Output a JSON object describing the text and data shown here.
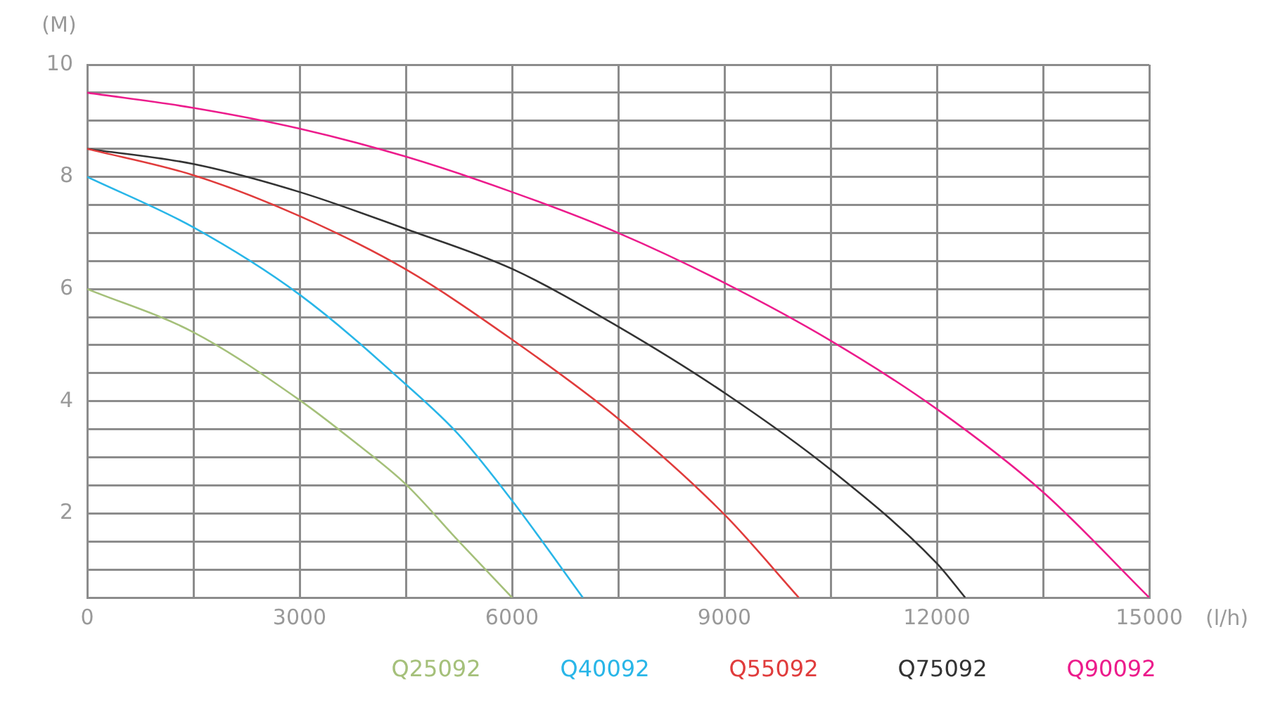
{
  "chart_data": {
    "type": "line",
    "xlabel": "(l/h)",
    "ylabel": "(M)",
    "xlim": [
      0,
      15000
    ],
    "ylim": [
      0.5,
      10
    ],
    "xticks": [
      0,
      {
        "value": 1500,
        "label": null
      },
      3000,
      {
        "value": 4500,
        "label": null
      },
      6000,
      {
        "value": 7500,
        "label": null
      },
      9000,
      {
        "value": 10500,
        "label": null
      },
      12000,
      {
        "value": 13500,
        "label": null
      },
      15000
    ],
    "yticks": [
      {
        "value": 0.5,
        "label": null
      },
      {
        "value": 1,
        "label": null
      },
      {
        "value": 1.5,
        "label": null
      },
      2,
      {
        "value": 2.5,
        "label": null
      },
      {
        "value": 3,
        "label": null
      },
      {
        "value": 3.5,
        "label": null
      },
      4,
      {
        "value": 4.5,
        "label": null
      },
      {
        "value": 5,
        "label": null
      },
      {
        "value": 5.5,
        "label": null
      },
      6,
      {
        "value": 6.5,
        "label": null
      },
      {
        "value": 7,
        "label": null
      },
      {
        "value": 7.5,
        "label": null
      },
      8,
      {
        "value": 8.5,
        "label": null
      },
      {
        "value": 9,
        "label": null
      },
      {
        "value": 9.5,
        "label": null
      },
      10
    ],
    "grid": true,
    "legend": "bottom",
    "marker": "none",
    "line_style": "solid",
    "series": [
      {
        "name": "Q25092",
        "color": "#a5c07a",
        "x": [
          0,
          1500,
          3000,
          3750,
          4500,
          5250,
          6000
        ],
        "values": [
          6,
          5.23,
          4.02,
          3.3,
          2.52,
          1.5,
          0.5
        ]
      },
      {
        "name": "Q40092",
        "color": "#29b6e8",
        "x": [
          0,
          1500,
          3000,
          4500,
          5250,
          6000,
          7000
        ],
        "values": [
          8,
          7.1,
          5.9,
          4.3,
          3.4,
          2.23,
          0.5
        ]
      },
      {
        "name": "Q55092",
        "color": "#e03c3c",
        "x": [
          0,
          1500,
          3000,
          4500,
          6000,
          7500,
          9000,
          10050
        ],
        "values": [
          8.5,
          8.03,
          7.3,
          6.35,
          5.1,
          3.69,
          1.98,
          0.5
        ]
      },
      {
        "name": "Q75092",
        "color": "#333333",
        "x": [
          0,
          1500,
          3000,
          4500,
          6000,
          7500,
          9000,
          10500,
          12000,
          12400
        ],
        "values": [
          8.5,
          8.23,
          7.73,
          7.07,
          6.36,
          5.33,
          4.15,
          2.78,
          1.11,
          0.5
        ]
      },
      {
        "name": "Q90092",
        "color": "#ec1c8c",
        "x": [
          0,
          1500,
          3000,
          4500,
          6000,
          7500,
          9000,
          10500,
          12000,
          13500,
          15000
        ],
        "values": [
          9.5,
          9.23,
          8.86,
          8.36,
          7.73,
          7.0,
          6.11,
          5.08,
          3.86,
          2.38,
          0.5
        ]
      }
    ]
  }
}
